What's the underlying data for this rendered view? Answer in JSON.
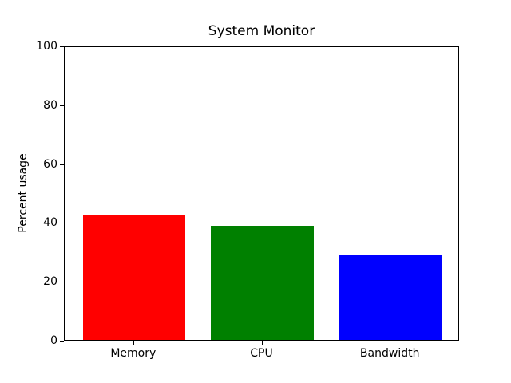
{
  "chart_data": {
    "type": "bar",
    "title": "System Monitor",
    "xlabel": "",
    "ylabel": "Percent usage",
    "categories": [
      "Memory",
      "CPU",
      "Bandwidth"
    ],
    "values": [
      42.3,
      38.8,
      28.7
    ],
    "bar_colors": [
      "#ff0000",
      "#008000",
      "#0000ff"
    ],
    "ylim": [
      0,
      100
    ],
    "yticks": [
      0,
      20,
      40,
      60,
      80,
      100
    ],
    "grid": false,
    "legend_position": "none",
    "frame_color": "#000000",
    "background_color": "#ffffff"
  }
}
